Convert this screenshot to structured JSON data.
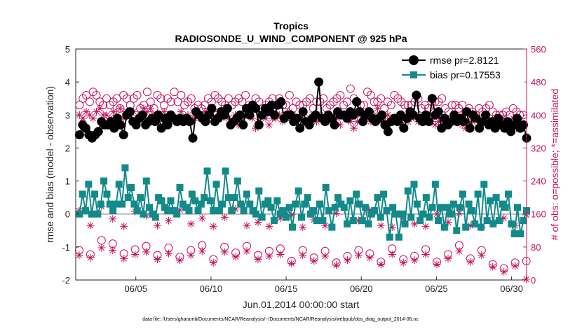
{
  "chart_data": {
    "type": "line",
    "title": "Tropics",
    "subtitle": "RADIOSONDE_U_WIND_COMPONENT @ 925 hPa",
    "xlabel": "Jun.01,2014 00:00:00 start",
    "ylabel": "rmse and bias (model - observation)",
    "ylabel_right": "# of obs: o=possible; *=assimilated",
    "xlim": [
      1,
      31
    ],
    "ylim": [
      -2,
      5
    ],
    "ylim_right": [
      0,
      560
    ],
    "x_ticks": [
      "06/05",
      "06/10",
      "06/15",
      "06/20",
      "06/25",
      "06/30"
    ],
    "y_ticks": [
      "5",
      "4",
      "3",
      "2",
      "1",
      "0",
      "-1",
      "-2"
    ],
    "y_ticks_right": [
      "560",
      "480",
      "400",
      "320",
      "240",
      "160",
      "80",
      "0"
    ],
    "legend": [
      {
        "name": "rmse pr=2.8121",
        "color": "#000000"
      },
      {
        "name": "bias pr=0.17553",
        "color": "#138a8a"
      }
    ],
    "footer": "data file: /Users/gharamti/Documents/NCAR/Reanalysis/~/Documents/NCAR/Reanalysis/webpub/obs_diag_output_2014-06.nc",
    "zero_line": 0,
    "x_start": 1.25,
    "x_step": 0.25,
    "series": [
      {
        "name": "rmse",
        "color": "#000000",
        "values": [
          2.4,
          2.7,
          2.6,
          2.4,
          2.3,
          2.4,
          2.5,
          2.8,
          2.7,
          2.7,
          2.8,
          2.6,
          2.9,
          2.7,
          2.4,
          3.0,
          3.1,
          2.8,
          2.7,
          2.9,
          3.0,
          2.7,
          2.8,
          2.9,
          2.8,
          3.0,
          2.6,
          2.9,
          2.7,
          3.0,
          2.9,
          2.8,
          2.9,
          2.8,
          2.9,
          2.8,
          2.3,
          3.1,
          3.0,
          2.9,
          2.8,
          3.0,
          3.2,
          2.8,
          2.9,
          3.1,
          3.0,
          3.2,
          2.7,
          2.8,
          2.9,
          3.0,
          2.7,
          3.2,
          3.0,
          3.3,
          3.2,
          2.7,
          3.0,
          3.2,
          3.1,
          3.3,
          3.0,
          3.3,
          3.4,
          2.9,
          3.0,
          3.0,
          2.8,
          2.9,
          2.6,
          3.1,
          2.8,
          2.7,
          2.9,
          3.0,
          4.0,
          2.9,
          2.8,
          3.0,
          2.9,
          2.7,
          3.1,
          3.0,
          3.0,
          2.9,
          3.1,
          3.0,
          3.4,
          3.1,
          2.8,
          3.0,
          3.1,
          2.9,
          2.8,
          2.9,
          3.0,
          2.7,
          2.5,
          2.8,
          2.9,
          2.8,
          3.0,
          2.6,
          2.9,
          3.1,
          3.0,
          3.6,
          2.9,
          2.8,
          3.0,
          2.8,
          3.5,
          3.0,
          3.1,
          2.6,
          2.9,
          2.7,
          2.8,
          3.0,
          2.8,
          2.9,
          2.8,
          3.1,
          2.6,
          3.0,
          2.9,
          2.6,
          2.8,
          3.0,
          2.7,
          2.8,
          2.6,
          2.9,
          2.7,
          2.6,
          2.8,
          2.5,
          2.7,
          2.9,
          2.6,
          2.7,
          2.3
        ]
      },
      {
        "name": "bias",
        "color": "#138a8a",
        "values": [
          0.0,
          0.6,
          0.1,
          0.9,
          0.0,
          0.6,
          0.0,
          0.3,
          1.0,
          0.6,
          0.3,
          0.1,
          0.3,
          0.9,
          0.3,
          1.4,
          0.5,
          0.8,
          0.3,
          0.1,
          0.5,
          0.0,
          1.0,
          0.2,
          0.0,
          -0.1,
          0.5,
          0.4,
          0.2,
          0.1,
          0.4,
          0.1,
          0.0,
          0.8,
          0.3,
          0.2,
          0.1,
          0.6,
          0.4,
          0.1,
          0.3,
          0.5,
          1.3,
          0.4,
          0.1,
          0.9,
          0.1,
          0.3,
          1.3,
          0.5,
          0.1,
          0.5,
          1.0,
          0.3,
          0.1,
          0.6,
          0.3,
          0.1,
          0.0,
          0.7,
          -0.1,
          0.3,
          0.4,
          0.2,
          -0.2,
          0.4,
          0.0,
          0.1,
          -0.1,
          0.2,
          -0.4,
          0.3,
          0.7,
          -0.1,
          0.3,
          0.5,
          0.0,
          0.1,
          -0.2,
          0.3,
          -0.2,
          0.8,
          0.1,
          -0.4,
          0.2,
          0.5,
          0.3,
          0.2,
          -0.3,
          0.4,
          -0.2,
          0.6,
          0.3,
          -0.2,
          0.2,
          -0.3,
          0.0,
          0.1,
          0.5,
          -0.1,
          0.6,
          0.1,
          -0.7,
          0.2,
          0.0,
          -0.7,
          0.0,
          -0.3,
          0.7,
          -0.1,
          0.9,
          0.3,
          -0.2,
          0.0,
          0.5,
          -0.1,
          0.2,
          0.9,
          -0.2,
          0.2,
          -0.4,
          0.2,
          0.0,
          0.3,
          -0.5,
          0.2,
          0.6,
          -0.4,
          0.3,
          0.1,
          -0.3,
          0.6,
          -0.4,
          0.9,
          -0.2,
          0.4,
          -0.3,
          0.5,
          -0.2,
          0.3,
          0.2,
          0.6,
          -0.3,
          -0.6,
          0.2,
          -0.6,
          -0.2,
          0.1
        ]
      },
      {
        "name": "possible_obs",
        "color": "#c8115f",
        "marker": "circle",
        "values_main_axis": [
          3.3,
          3.5,
          3.6,
          3.4,
          3.7,
          3.6,
          3.4,
          3.3,
          3.5,
          3.3,
          3.4,
          3.5,
          3.2,
          3.6,
          3.5,
          3.3,
          3.5,
          3.6,
          3.2,
          3.3,
          3.7,
          3.4,
          3.2,
          3.6,
          3.5,
          3.3,
          3.5,
          3.4,
          3.7,
          3.4,
          3.6,
          3.3,
          3.4,
          3.5,
          3.2,
          3.3,
          3.2,
          3.3,
          3.5,
          3.4,
          3.6,
          3.5,
          3.4,
          3.3,
          3.5,
          3.3,
          3.4,
          3.5,
          3.4,
          3.6,
          3.3,
          3.2,
          3.5,
          3.4,
          3.2,
          3.3,
          3.4,
          3.5,
          3.3,
          3.5,
          3.3,
          3.3,
          3.6,
          3.2,
          3.4,
          3.3,
          3.3,
          3.4,
          3.5,
          3.2,
          3.4,
          3.4,
          3.5,
          3.2,
          3.3,
          3.4,
          3.5,
          3.6,
          3.3,
          3.4,
          3.8,
          3.5,
          3.4,
          3.3,
          3.3,
          3.7,
          3.6,
          3.4,
          3.4,
          3.5,
          3.2,
          3.4,
          3.3,
          3.6,
          3.5,
          3.4,
          3.3,
          3.3,
          3.3,
          3.4,
          3.5,
          3.2,
          3.3,
          3.2,
          3.4,
          3.4,
          3.4,
          3.5,
          3.2,
          3.1,
          3.3,
          3.3,
          3.2,
          3.3,
          3.1,
          3.2,
          3.1,
          3.0,
          3.2,
          3.1,
          3.2,
          3.3,
          3.1,
          3.0,
          3.0,
          3.0,
          3.1,
          3.0,
          3.2,
          3.1,
          3.0,
          3.0
        ]
      },
      {
        "name": "assimilated_obs",
        "color": "#c8115f",
        "marker": "star",
        "values_main_axis": [
          3.0,
          2.9,
          3.1,
          3.0,
          2.9,
          3.1,
          3.2,
          3.0,
          3.0,
          2.9,
          3.1,
          3.0,
          3.2,
          2.9,
          3.1,
          3.0,
          3.1,
          2.9,
          3.0,
          3.2,
          3.1,
          3.2,
          3.0,
          2.9,
          3.0,
          3.1,
          2.9,
          3.0,
          2.8,
          2.9,
          3.1,
          2.8,
          3.0,
          2.9,
          2.9,
          3.0,
          2.9,
          3.1,
          3.0,
          3.0,
          2.9,
          3.1,
          2.9,
          3.0,
          2.9,
          2.8,
          3.0,
          2.7,
          2.9,
          3.0,
          3.1,
          2.9,
          2.6,
          2.8,
          3.0,
          2.9,
          2.7,
          2.9,
          2.9,
          3.0,
          2.8,
          2.9,
          3.1,
          3.0,
          2.9,
          2.9,
          3.0,
          2.8,
          2.9,
          3.0,
          2.8,
          3.0,
          2.9,
          2.8,
          2.9,
          3.0,
          2.9,
          2.7,
          3.0,
          2.9,
          2.8,
          2.6,
          2.8,
          3.0,
          2.9,
          2.9,
          2.8,
          3.0,
          3.2,
          2.8,
          2.9,
          3.0,
          2.9,
          2.9,
          2.8,
          2.7,
          2.9,
          2.8,
          2.9,
          3.0,
          2.8,
          2.9,
          2.8,
          2.9,
          2.8,
          2.7,
          2.8,
          2.7,
          2.9,
          2.8,
          2.9,
          2.8,
          2.8,
          2.7,
          2.6,
          2.8,
          2.8,
          2.9,
          2.7,
          2.8,
          2.9,
          2.8,
          2.8,
          2.9,
          2.7,
          2.9,
          2.8,
          2.8,
          2.9,
          2.6,
          2.8,
          2.7
        ]
      },
      {
        "name": "possible_obs_low",
        "color": "#c8115f",
        "marker": "circle",
        "values_right": [
          72,
          62,
          96,
          88,
          64,
          74,
          82,
          60,
          78,
          56,
          72,
          84,
          50,
          80,
          66,
          82,
          60,
          70,
          76,
          46,
          72,
          54,
          70,
          42,
          58,
          72,
          64,
          44,
          76,
          50,
          58,
          74,
          44,
          62,
          84,
          52,
          72,
          38,
          28,
          42,
          46
        ]
      },
      {
        "name": "assimilated_obs_low",
        "color": "#c8115f",
        "marker": "star",
        "values_right": [
          60,
          54,
          78,
          72,
          52,
          62,
          68,
          50,
          64,
          48,
          60,
          70,
          42,
          68,
          56,
          70,
          50,
          58,
          62,
          40,
          60,
          46,
          58,
          36,
          48,
          60,
          54,
          38,
          62,
          42,
          48,
          62,
          38,
          52,
          70,
          44,
          60,
          32,
          20,
          34,
          2
        ]
      },
      {
        "name": "assimilated_obs_mid",
        "color": "#c8115f",
        "marker": "star",
        "values_right": [
          168,
          132,
          178,
          148,
          130,
          166,
          156,
          132,
          144,
          170,
          136,
          150,
          130,
          152,
          172,
          132,
          140,
          130,
          150,
          158,
          128,
          146,
          132,
          162,
          138,
          144,
          170,
          132,
          128,
          150,
          136,
          130,
          160,
          140,
          162,
          132,
          128,
          140,
          150,
          132,
          158
        ]
      }
    ]
  }
}
